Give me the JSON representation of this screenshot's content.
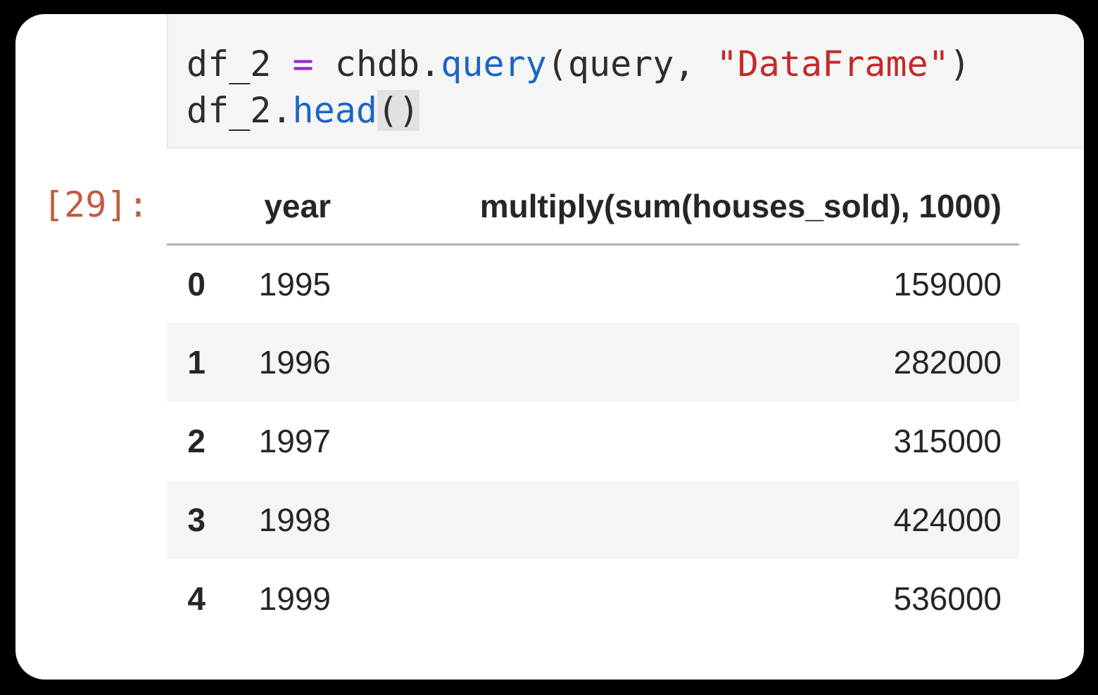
{
  "colors": {
    "operator": "#9628d2",
    "function": "#1b66c4",
    "string": "#c32b2b",
    "out_prompt": "#c25c42",
    "code_text": "#2d2d2d",
    "cell_bg": "#f5f5f5",
    "stripe_bg": "#f5f5f5",
    "header_rule": "#b2b2b2",
    "bracket_highlight": "#e2e2e2"
  },
  "code_cell": {
    "lines": [
      {
        "tokens": [
          {
            "text": "df_2 ",
            "type": "text"
          },
          {
            "text": "=",
            "type": "operator"
          },
          {
            "text": " chdb.",
            "type": "text"
          },
          {
            "text": "query",
            "type": "function"
          },
          {
            "text": "(query, ",
            "type": "text"
          },
          {
            "text": "\"DataFrame\"",
            "type": "string"
          },
          {
            "text": ")",
            "type": "text"
          }
        ]
      },
      {
        "tokens": [
          {
            "text": "df_2.",
            "type": "text"
          },
          {
            "text": "head",
            "type": "function"
          },
          {
            "text": "()",
            "type": "bracket"
          }
        ]
      }
    ]
  },
  "output": {
    "prompt": "[29]:"
  },
  "table": {
    "columns": [
      "year",
      "multiply(sum(houses_sold), 1000)"
    ],
    "rows": [
      {
        "index": "0",
        "year": "1995",
        "value": "159000"
      },
      {
        "index": "1",
        "year": "1996",
        "value": "282000"
      },
      {
        "index": "2",
        "year": "1997",
        "value": "315000"
      },
      {
        "index": "3",
        "year": "1998",
        "value": "424000"
      },
      {
        "index": "4",
        "year": "1999",
        "value": "536000"
      }
    ]
  }
}
